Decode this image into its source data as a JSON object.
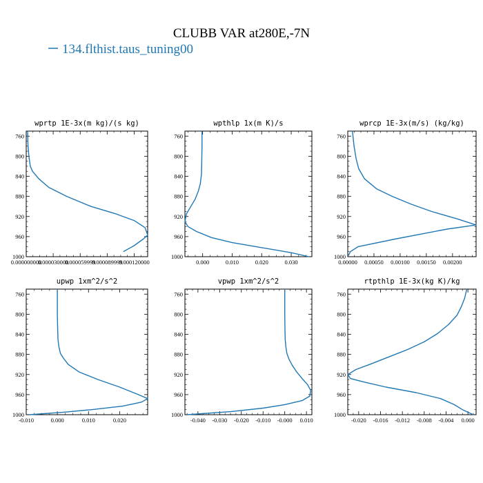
{
  "figure": {
    "title": "CLUBB VAR at280E,-7N",
    "legend_label": "134.flthist.taus_tuning00",
    "line_color": "#1f77b4"
  },
  "chart_data": [
    {
      "type": "line",
      "title": "wprtp  1E-3x(m kg)/(s kg)",
      "xlim": [
        0,
        0.000135
      ],
      "ylim": [
        1000,
        750
      ],
      "xticks": [
        0,
        3e-05,
        6e-05,
        9e-05,
        0.00012
      ],
      "xtick_labels": [
        "0.000000000",
        "0.000030000",
        "0.000059999",
        "0.000089999",
        "0.000120000"
      ],
      "yticks": [
        760,
        800,
        840,
        880,
        920,
        960,
        1000
      ],
      "series": [
        {
          "x": [
            1.5e-06,
            2e-06,
            3e-06,
            4.5e-06,
            7e-06,
            1.4e-05,
            2.5e-05,
            4.5e-05,
            7.2e-05,
            0.0001,
            0.00012,
            0.000132,
            0.000135,
            0.00013,
            0.00012,
            0.000108
          ],
          "y": [
            750,
            780,
            800,
            820,
            830,
            845,
            862,
            880,
            900,
            915,
            928,
            942,
            957,
            965,
            978,
            990
          ]
        }
      ]
    },
    {
      "type": "line",
      "title": "wpthlp  1x(m K)/s",
      "xlim": [
        -0.006,
        0.037
      ],
      "ylim": [
        1000,
        750
      ],
      "xticks": [
        0,
        0.01,
        0.02,
        0.03
      ],
      "xtick_labels": [
        "0.000",
        "0.010",
        "0.020",
        "0.030"
      ],
      "yticks": [
        760,
        800,
        840,
        880,
        920,
        960,
        1000
      ],
      "series": [
        {
          "x": [
            -0.0002,
            -0.0002,
            -0.0003,
            -0.0004,
            -0.0008,
            -0.0015,
            -0.0025,
            -0.004,
            -0.0055,
            -0.006,
            -0.005,
            -0.002,
            0.003,
            0.01,
            0.02,
            0.03,
            0.036
          ],
          "y": [
            750,
            780,
            810,
            835,
            855,
            870,
            885,
            900,
            915,
            930,
            940,
            950,
            962,
            972,
            982,
            992,
            1000
          ]
        }
      ]
    },
    {
      "type": "line",
      "title": "wprcp  1E-3x(m/s) (kg/kg)",
      "xlim": [
        0,
        0.00245
      ],
      "ylim": [
        1000,
        750
      ],
      "xticks": [
        0,
        0.0005,
        0.001,
        0.0015,
        0.002
      ],
      "xtick_labels": [
        "0.00000",
        "0.00050",
        "0.00100",
        "0.00150",
        "0.00200"
      ],
      "yticks": [
        760,
        800,
        840,
        880,
        920,
        960,
        1000
      ],
      "series": [
        {
          "x": [
            9e-05,
            0.00012,
            0.00016,
            0.00021,
            0.00032,
            0.00055,
            0.00085,
            0.0012,
            0.0016,
            0.0021,
            0.00245,
            0.0019,
            0.0009,
            0.0002,
            5e-05,
            1e-05
          ],
          "y": [
            750,
            780,
            805,
            825,
            845,
            865,
            880,
            895,
            910,
            925,
            937,
            945,
            965,
            980,
            990,
            998
          ]
        }
      ]
    },
    {
      "type": "line",
      "title": "upwp  1xm^2/s^2",
      "xlim": [
        -0.01,
        0.029
      ],
      "ylim": [
        1000,
        750
      ],
      "xticks": [
        -0.01,
        0,
        0.01,
        0.02
      ],
      "xtick_labels": [
        "-0.010",
        "0.000",
        "0.010",
        "0.020"
      ],
      "yticks": [
        760,
        800,
        840,
        880,
        920,
        960,
        1000
      ],
      "series": [
        {
          "x": [
            0.0,
            0.0,
            0.0001,
            0.0002,
            0.0005,
            0.001,
            0.002,
            0.0035,
            0.007,
            0.013,
            0.02,
            0.026,
            0.029,
            0.027,
            0.021,
            0.011,
            0.002,
            -0.009
          ],
          "y": [
            750,
            800,
            830,
            850,
            865,
            878,
            888,
            900,
            915,
            930,
            945,
            960,
            968,
            975,
            983,
            990,
            995,
            1000
          ]
        }
      ]
    },
    {
      "type": "line",
      "title": "vpwp  1xm^2/s^2",
      "xlim": [
        -0.046,
        0.0125
      ],
      "ylim": [
        1000,
        750
      ],
      "xticks": [
        -0.04,
        -0.03,
        -0.02,
        -0.01,
        0,
        0.01
      ],
      "xtick_labels": [
        "-0.040",
        "-0.030",
        "-0.020",
        "-0.010",
        "-0.000",
        "0.010"
      ],
      "yticks": [
        760,
        800,
        840,
        880,
        920,
        960,
        1000
      ],
      "series": [
        {
          "x": [
            0.0,
            0.0,
            0.0001,
            0.0002,
            0.0005,
            0.001,
            0.002,
            0.0035,
            0.0055,
            0.008,
            0.0105,
            0.012,
            0.0115,
            0.008,
            0.0,
            -0.01,
            -0.025,
            -0.045
          ],
          "y": [
            750,
            800,
            830,
            850,
            865,
            878,
            890,
            902,
            915,
            928,
            940,
            952,
            963,
            972,
            980,
            987,
            994,
            1000
          ]
        }
      ]
    },
    {
      "type": "line",
      "title": "rtpthlp  1E-3x(kg K)/kg",
      "xlim": [
        -0.022,
        0.0015
      ],
      "ylim": [
        1000,
        750
      ],
      "xticks": [
        -0.02,
        -0.016,
        -0.012,
        -0.008,
        -0.004,
        0
      ],
      "xtick_labels": [
        "-0.020",
        "-0.016",
        "-0.012",
        "-0.008",
        "-0.004",
        "0.000"
      ],
      "yticks": [
        760,
        800,
        840,
        880,
        920,
        960,
        1000
      ],
      "series": [
        {
          "x": [
            -0.0002,
            -0.0006,
            -0.0012,
            -0.002,
            -0.0035,
            -0.0055,
            -0.008,
            -0.011,
            -0.0145,
            -0.018,
            -0.0205,
            -0.022,
            -0.0215,
            -0.019,
            -0.015,
            -0.0095,
            -0.005,
            -0.0025,
            -0.001,
            0.001
          ],
          "y": [
            750,
            768,
            785,
            802,
            820,
            838,
            855,
            870,
            885,
            900,
            910,
            920,
            928,
            935,
            945,
            956,
            968,
            980,
            990,
            1000
          ]
        }
      ]
    }
  ]
}
